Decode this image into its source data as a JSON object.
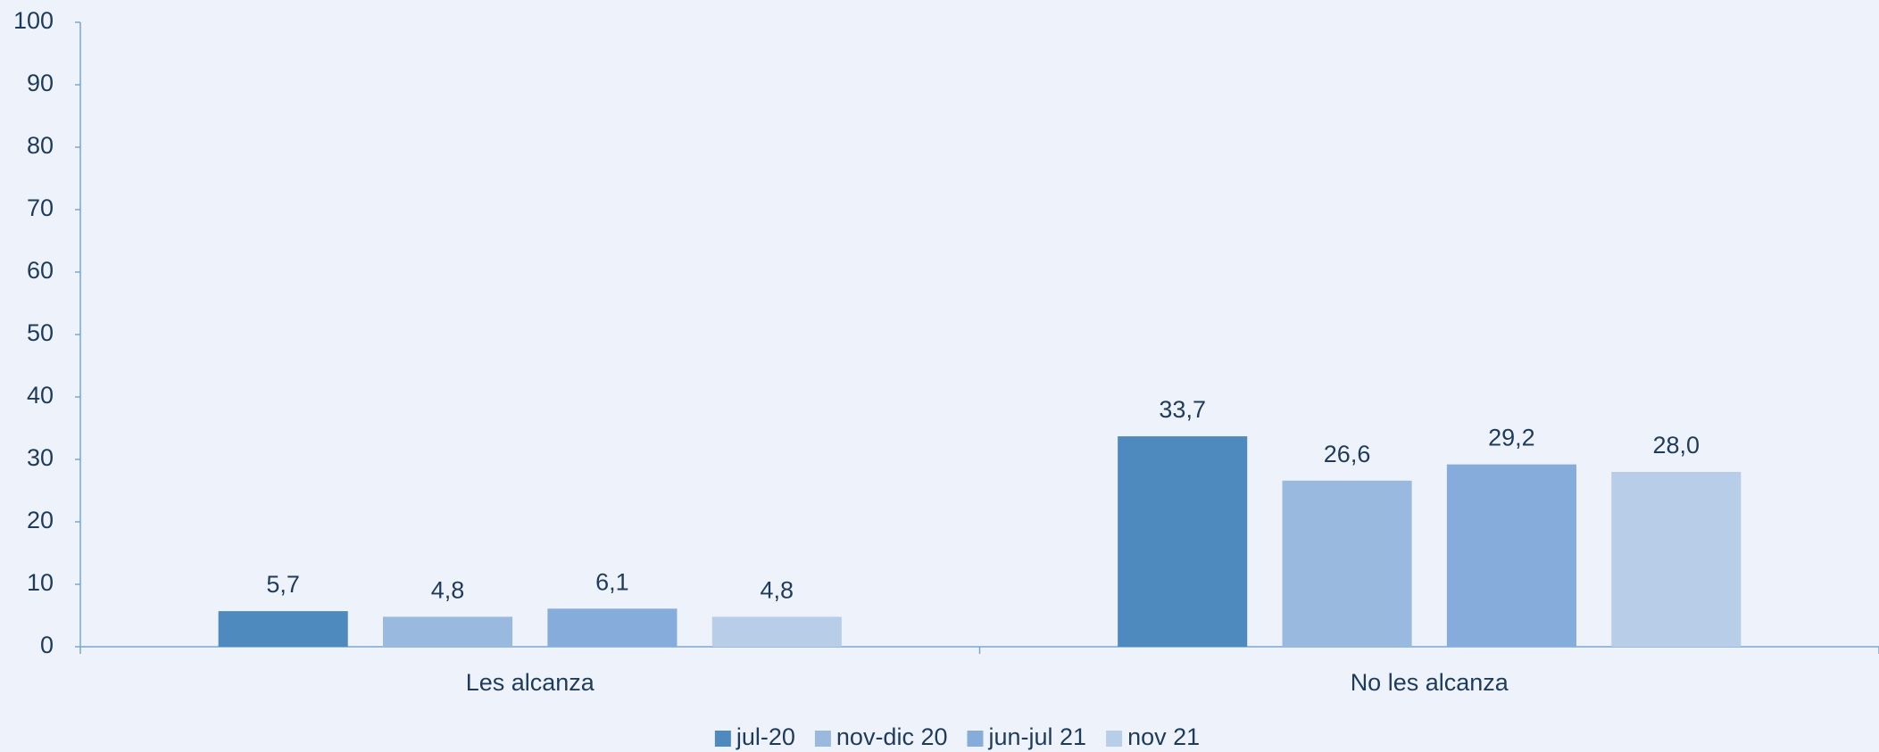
{
  "chart_data": {
    "type": "bar",
    "categories": [
      "Les alcanza",
      "No les alcanza"
    ],
    "series": [
      {
        "name": "jul-20",
        "color": "#4f8abf",
        "values": [
          5.7,
          33.7
        ],
        "value_labels": [
          "5,7",
          "33,7"
        ]
      },
      {
        "name": "nov-dic 20",
        "color": "#9ab9df",
        "values": [
          4.8,
          26.6
        ],
        "value_labels": [
          "4,8",
          "26,6"
        ]
      },
      {
        "name": "jun-jul 21",
        "color": "#86acdb",
        "values": [
          6.1,
          29.2
        ],
        "value_labels": [
          "6,1",
          "29,2"
        ]
      },
      {
        "name": "nov 21",
        "color": "#b8cde8",
        "values": [
          4.8,
          28.0
        ],
        "value_labels": [
          "4,8",
          "28,0"
        ]
      }
    ],
    "ylim": [
      0,
      100
    ],
    "yticks": [
      0,
      10,
      20,
      30,
      40,
      50,
      60,
      70,
      80,
      90,
      100
    ],
    "legend": "bottom"
  }
}
